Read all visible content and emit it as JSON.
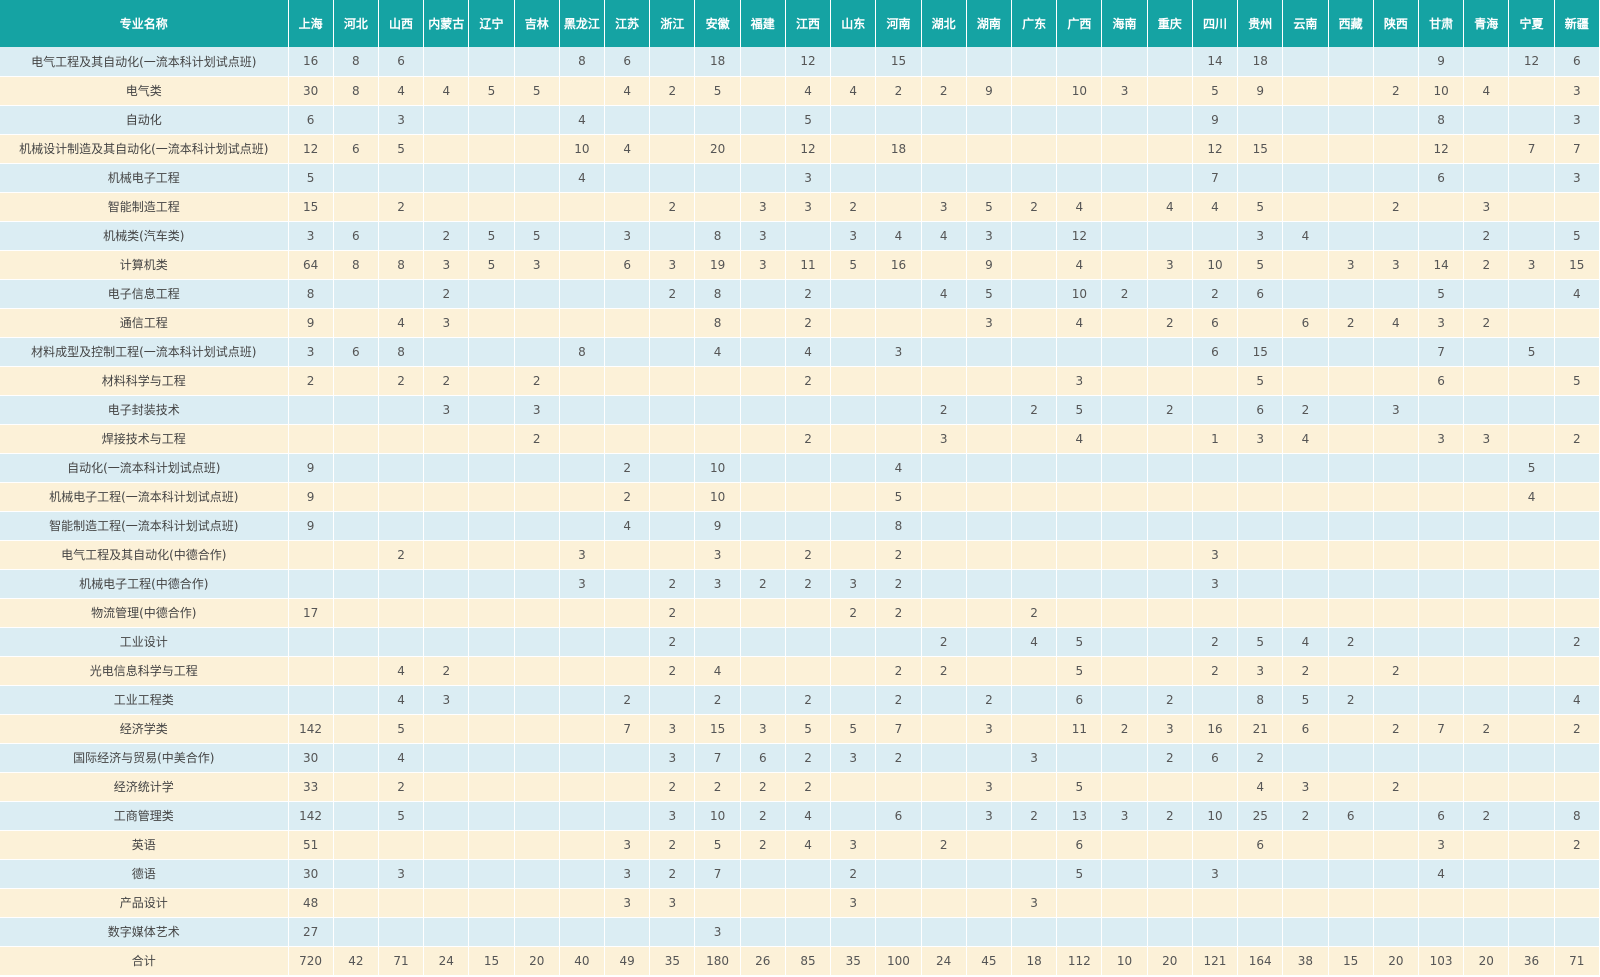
{
  "table": {
    "header_name": "专业名称",
    "provinces": [
      "上海",
      "河北",
      "山西",
      "内蒙古",
      "辽宁",
      "吉林",
      "黑龙江",
      "江苏",
      "浙江",
      "安徽",
      "福建",
      "江西",
      "山东",
      "河南",
      "湖北",
      "湖南",
      "广东",
      "广西",
      "海南",
      "重庆",
      "四川",
      "贵州",
      "云南",
      "西藏",
      "陕西",
      "甘肃",
      "青海",
      "宁夏",
      "新疆"
    ],
    "rows": [
      {
        "name": "电气工程及其自动化(一流本科计划试点班)",
        "cells": [
          "16",
          "8",
          "6",
          "",
          "",
          "",
          "8",
          "6",
          "",
          "18",
          "",
          "12",
          "",
          "15",
          "",
          "",
          "",
          "",
          "",
          "",
          "14",
          "18",
          "",
          "",
          "",
          "9",
          "",
          "12",
          "6"
        ]
      },
      {
        "name": "电气类",
        "cells": [
          "30",
          "8",
          "4",
          "4",
          "5",
          "5",
          "",
          "4",
          "2",
          "5",
          "",
          "4",
          "4",
          "2",
          "2",
          "9",
          "",
          "10",
          "3",
          "",
          "5",
          "9",
          "",
          "",
          "2",
          "10",
          "4",
          "",
          "3"
        ]
      },
      {
        "name": "自动化",
        "cells": [
          "6",
          "",
          "3",
          "",
          "",
          "",
          "4",
          "",
          "",
          "",
          "",
          "5",
          "",
          "",
          "",
          "",
          "",
          "",
          "",
          "",
          "9",
          "",
          "",
          "",
          "",
          "8",
          "",
          "",
          "3"
        ]
      },
      {
        "name": "机械设计制造及其自动化(一流本科计划试点班)",
        "cells": [
          "12",
          "6",
          "5",
          "",
          "",
          "",
          "10",
          "4",
          "",
          "20",
          "",
          "12",
          "",
          "18",
          "",
          "",
          "",
          "",
          "",
          "",
          "12",
          "15",
          "",
          "",
          "",
          "12",
          "",
          "7",
          "7"
        ]
      },
      {
        "name": "机械电子工程",
        "cells": [
          "5",
          "",
          "",
          "",
          "",
          "",
          "4",
          "",
          "",
          "",
          "",
          "3",
          "",
          "",
          "",
          "",
          "",
          "",
          "",
          "",
          "7",
          "",
          "",
          "",
          "",
          "6",
          "",
          "",
          "3"
        ]
      },
      {
        "name": "智能制造工程",
        "cells": [
          "15",
          "",
          "2",
          "",
          "",
          "",
          "",
          "",
          "2",
          "",
          "3",
          "3",
          "2",
          "",
          "3",
          "5",
          "2",
          "4",
          "",
          "4",
          "4",
          "5",
          "",
          "",
          "2",
          "",
          "3",
          "",
          ""
        ]
      },
      {
        "name": "机械类(汽车类)",
        "cells": [
          "3",
          "6",
          "",
          "2",
          "5",
          "5",
          "",
          "3",
          "",
          "8",
          "3",
          "",
          "3",
          "4",
          "4",
          "3",
          "",
          "12",
          "",
          "",
          "",
          "3",
          "4",
          "",
          "",
          "",
          "2",
          "",
          "5"
        ]
      },
      {
        "name": "计算机类",
        "cells": [
          "64",
          "8",
          "8",
          "3",
          "5",
          "3",
          "",
          "6",
          "3",
          "19",
          "3",
          "11",
          "5",
          "16",
          "",
          "9",
          "",
          "4",
          "",
          "3",
          "10",
          "5",
          "",
          "3",
          "3",
          "14",
          "2",
          "3",
          "15"
        ]
      },
      {
        "name": "电子信息工程",
        "cells": [
          "8",
          "",
          "",
          "2",
          "",
          "",
          "",
          "",
          "2",
          "8",
          "",
          "2",
          "",
          "",
          "4",
          "5",
          "",
          "10",
          "2",
          "",
          "2",
          "6",
          "",
          "",
          "",
          "5",
          "",
          "",
          "4"
        ]
      },
      {
        "name": "通信工程",
        "cells": [
          "9",
          "",
          "4",
          "3",
          "",
          "",
          "",
          "",
          "",
          "8",
          "",
          "2",
          "",
          "",
          "",
          "3",
          "",
          "4",
          "",
          "2",
          "6",
          "",
          "6",
          "2",
          "4",
          "3",
          "2",
          "",
          ""
        ]
      },
      {
        "name": "材料成型及控制工程(一流本科计划试点班)",
        "cells": [
          "3",
          "6",
          "8",
          "",
          "",
          "",
          "8",
          "",
          "",
          "4",
          "",
          "4",
          "",
          "3",
          "",
          "",
          "",
          "",
          "",
          "",
          "6",
          "15",
          "",
          "",
          "",
          "7",
          "",
          "5",
          ""
        ]
      },
      {
        "name": "材料科学与工程",
        "cells": [
          "2",
          "",
          "2",
          "2",
          "",
          "2",
          "",
          "",
          "",
          "",
          "",
          "2",
          "",
          "",
          "",
          "",
          "",
          "3",
          "",
          "",
          "",
          "5",
          "",
          "",
          "",
          "6",
          "",
          "",
          "5"
        ]
      },
      {
        "name": "电子封装技术",
        "cells": [
          "",
          "",
          "",
          "3",
          "",
          "3",
          "",
          "",
          "",
          "",
          "",
          "",
          "",
          "",
          "2",
          "",
          "2",
          "5",
          "",
          "2",
          "",
          "6",
          "2",
          "",
          "3",
          "",
          "",
          "",
          ""
        ]
      },
      {
        "name": "焊接技术与工程",
        "cells": [
          "",
          "",
          "",
          "",
          "",
          "2",
          "",
          "",
          "",
          "",
          "",
          "2",
          "",
          "",
          "3",
          "",
          "",
          "4",
          "",
          "",
          "1",
          "3",
          "4",
          "",
          "",
          "3",
          "3",
          "",
          "2"
        ]
      },
      {
        "name": "自动化(一流本科计划试点班)",
        "cells": [
          "9",
          "",
          "",
          "",
          "",
          "",
          "",
          "2",
          "",
          "10",
          "",
          "",
          "",
          "4",
          "",
          "",
          "",
          "",
          "",
          "",
          "",
          "",
          "",
          "",
          "",
          "",
          "",
          "5",
          ""
        ]
      },
      {
        "name": "机械电子工程(一流本科计划试点班)",
        "cells": [
          "9",
          "",
          "",
          "",
          "",
          "",
          "",
          "2",
          "",
          "10",
          "",
          "",
          "",
          "5",
          "",
          "",
          "",
          "",
          "",
          "",
          "",
          "",
          "",
          "",
          "",
          "",
          "",
          "4",
          ""
        ]
      },
      {
        "name": "智能制造工程(一流本科计划试点班)",
        "cells": [
          "9",
          "",
          "",
          "",
          "",
          "",
          "",
          "4",
          "",
          "9",
          "",
          "",
          "",
          "8",
          "",
          "",
          "",
          "",
          "",
          "",
          "",
          "",
          "",
          "",
          "",
          "",
          "",
          "",
          ""
        ]
      },
      {
        "name": "电气工程及其自动化(中德合作)",
        "cells": [
          "",
          "",
          "2",
          "",
          "",
          "",
          "3",
          "",
          "",
          "3",
          "",
          "2",
          "",
          "2",
          "",
          "",
          "",
          "",
          "",
          "",
          "3",
          "",
          "",
          "",
          "",
          "",
          "",
          "",
          ""
        ]
      },
      {
        "name": "机械电子工程(中德合作)",
        "cells": [
          "",
          "",
          "",
          "",
          "",
          "",
          "3",
          "",
          "2",
          "3",
          "2",
          "2",
          "3",
          "2",
          "",
          "",
          "",
          "",
          "",
          "",
          "3",
          "",
          "",
          "",
          "",
          "",
          "",
          "",
          ""
        ]
      },
      {
        "name": "物流管理(中德合作)",
        "cells": [
          "17",
          "",
          "",
          "",
          "",
          "",
          "",
          "",
          "2",
          "",
          "",
          "",
          "2",
          "2",
          "",
          "",
          "2",
          "",
          "",
          "",
          "",
          "",
          "",
          "",
          "",
          "",
          "",
          "",
          ""
        ]
      },
      {
        "name": "工业设计",
        "cells": [
          "",
          "",
          "",
          "",
          "",
          "",
          "",
          "",
          "2",
          "",
          "",
          "",
          "",
          "",
          "2",
          "",
          "4",
          "5",
          "",
          "",
          "2",
          "5",
          "4",
          "2",
          "",
          "",
          "",
          "",
          "2"
        ]
      },
      {
        "name": "光电信息科学与工程",
        "cells": [
          "",
          "",
          "4",
          "2",
          "",
          "",
          "",
          "",
          "2",
          "4",
          "",
          "",
          "",
          "2",
          "2",
          "",
          "",
          "5",
          "",
          "",
          "2",
          "3",
          "2",
          "",
          "2",
          "",
          "",
          "",
          ""
        ]
      },
      {
        "name": "工业工程类",
        "cells": [
          "",
          "",
          "4",
          "3",
          "",
          "",
          "",
          "2",
          "",
          "2",
          "",
          "2",
          "",
          "2",
          "",
          "2",
          "",
          "6",
          "",
          "2",
          "",
          "8",
          "5",
          "2",
          "",
          "",
          "",
          "",
          "4"
        ]
      },
      {
        "name": "经济学类",
        "cells": [
          "142",
          "",
          "5",
          "",
          "",
          "",
          "",
          "7",
          "3",
          "15",
          "3",
          "5",
          "5",
          "7",
          "",
          "3",
          "",
          "11",
          "2",
          "3",
          "16",
          "21",
          "6",
          "",
          "2",
          "7",
          "2",
          "",
          "2"
        ]
      },
      {
        "name": "国际经济与贸易(中美合作)",
        "cells": [
          "30",
          "",
          "4",
          "",
          "",
          "",
          "",
          "",
          "3",
          "7",
          "6",
          "2",
          "3",
          "2",
          "",
          "",
          "3",
          "",
          "",
          "2",
          "6",
          "2",
          "",
          "",
          "",
          "",
          "",
          "",
          ""
        ]
      },
      {
        "name": "经济统计学",
        "cells": [
          "33",
          "",
          "2",
          "",
          "",
          "",
          "",
          "",
          "2",
          "2",
          "2",
          "2",
          "",
          "",
          "",
          "3",
          "",
          "5",
          "",
          "",
          "",
          "4",
          "3",
          "",
          "2",
          "",
          "",
          "",
          ""
        ]
      },
      {
        "name": "工商管理类",
        "cells": [
          "142",
          "",
          "5",
          "",
          "",
          "",
          "",
          "",
          "3",
          "10",
          "2",
          "4",
          "",
          "6",
          "",
          "3",
          "2",
          "13",
          "3",
          "2",
          "10",
          "25",
          "2",
          "6",
          "",
          "6",
          "2",
          "",
          "8"
        ]
      },
      {
        "name": "英语",
        "cells": [
          "51",
          "",
          "",
          "",
          "",
          "",
          "",
          "3",
          "2",
          "5",
          "2",
          "4",
          "3",
          "",
          "2",
          "",
          "",
          "6",
          "",
          "",
          "",
          "6",
          "",
          "",
          "",
          "3",
          "",
          "",
          "2"
        ]
      },
      {
        "name": "德语",
        "cells": [
          "30",
          "",
          "3",
          "",
          "",
          "",
          "",
          "3",
          "2",
          "7",
          "",
          "",
          "2",
          "",
          "",
          "",
          "",
          "5",
          "",
          "",
          "3",
          "",
          "",
          "",
          "",
          "4",
          "",
          "",
          ""
        ]
      },
      {
        "name": "产品设计",
        "cells": [
          "48",
          "",
          "",
          "",
          "",
          "",
          "",
          "3",
          "3",
          "",
          "",
          "",
          "3",
          "",
          "",
          "",
          "3",
          "",
          "",
          "",
          "",
          "",
          "",
          "",
          "",
          "",
          "",
          "",
          ""
        ]
      },
      {
        "name": "数字媒体艺术",
        "cells": [
          "27",
          "",
          "",
          "",
          "",
          "",
          "",
          "",
          "",
          "3",
          "",
          "",
          "",
          "",
          "",
          "",
          "",
          "",
          "",
          "",
          "",
          "",
          "",
          "",
          "",
          "",
          "",
          "",
          ""
        ]
      }
    ],
    "total": {
      "name": "合计",
      "cells": [
        "720",
        "42",
        "71",
        "24",
        "15",
        "20",
        "40",
        "49",
        "35",
        "180",
        "26",
        "85",
        "35",
        "100",
        "24",
        "45",
        "18",
        "112",
        "10",
        "20",
        "121",
        "164",
        "38",
        "15",
        "20",
        "103",
        "20",
        "36",
        "71"
      ]
    }
  }
}
